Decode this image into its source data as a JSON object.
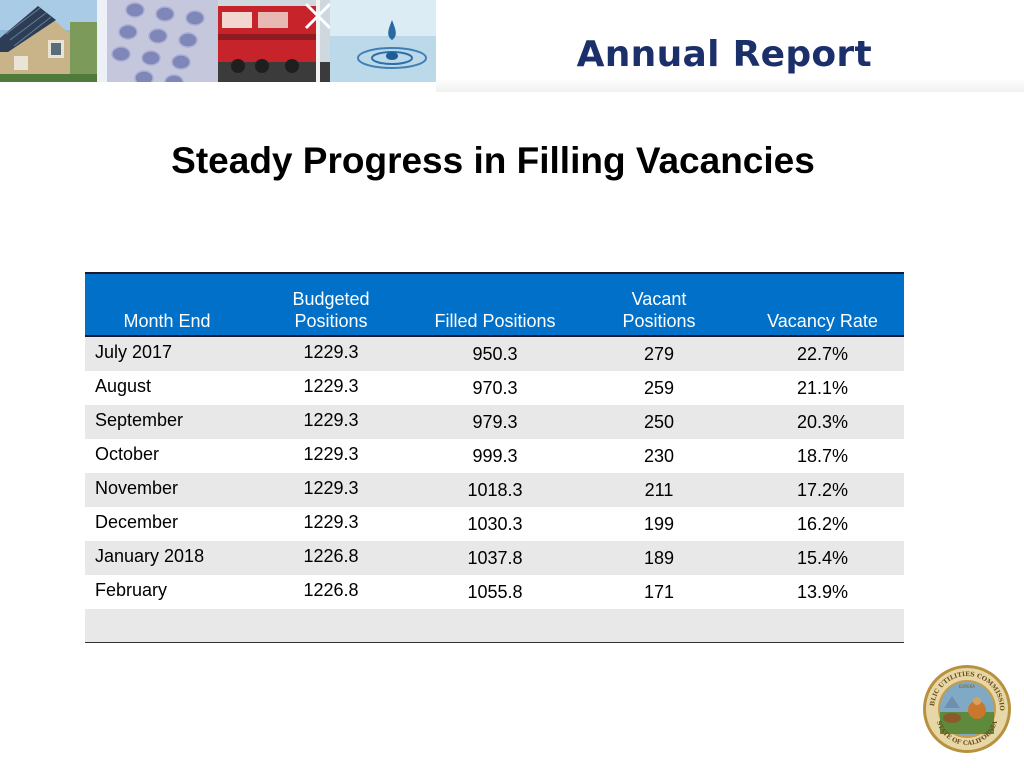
{
  "header": {
    "title": "Annual Report"
  },
  "slide": {
    "title": "Steady Progress in Filling Vacancies"
  },
  "table": {
    "headers": {
      "month": "Month End",
      "budgeted_line1": "Budgeted",
      "budgeted_line2": "Positions",
      "filled": "Filled Positions",
      "vacant_line1": "Vacant",
      "vacant_line2": "Positions",
      "rate": "Vacancy Rate"
    },
    "rows": [
      {
        "month": "July 2017",
        "budgeted": "1229.3",
        "filled": "950.3",
        "vacant": "279",
        "rate": "22.7%"
      },
      {
        "month": "August",
        "budgeted": "1229.3",
        "filled": "970.3",
        "vacant": "259",
        "rate": "21.1%"
      },
      {
        "month": "September",
        "budgeted": "1229.3",
        "filled": "979.3",
        "vacant": "250",
        "rate": "20.3%"
      },
      {
        "month": "October",
        "budgeted": "1229.3",
        "filled": "999.3",
        "vacant": "230",
        "rate": "18.7%"
      },
      {
        "month": "November",
        "budgeted": "1229.3",
        "filled": "1018.3",
        "vacant": "211",
        "rate": "17.2%"
      },
      {
        "month": "December",
        "budgeted": "1229.3",
        "filled": "1030.3",
        "vacant": "199",
        "rate": "16.2%"
      },
      {
        "month": "January 2018",
        "budgeted": "1226.8",
        "filled": "1037.8",
        "vacant": "189",
        "rate": "15.4%"
      },
      {
        "month": "February",
        "budgeted": "1226.8",
        "filled": "1055.8",
        "vacant": "171",
        "rate": "13.9%"
      }
    ]
  },
  "seal": {
    "text_top": "PUBLIC UTILITIES COMMISSION",
    "text_bottom": "STATE OF CALIFORNIA",
    "motto": "EUREKA"
  },
  "colors": {
    "header_title": "#1b2f6b",
    "table_header_bg": "#0070c9",
    "row_alt_bg": "#e8e8e8"
  },
  "icons": [
    "house-solar-image",
    "phone-keypad-image",
    "train-image",
    "water-drop-image",
    "state-seal-image"
  ]
}
